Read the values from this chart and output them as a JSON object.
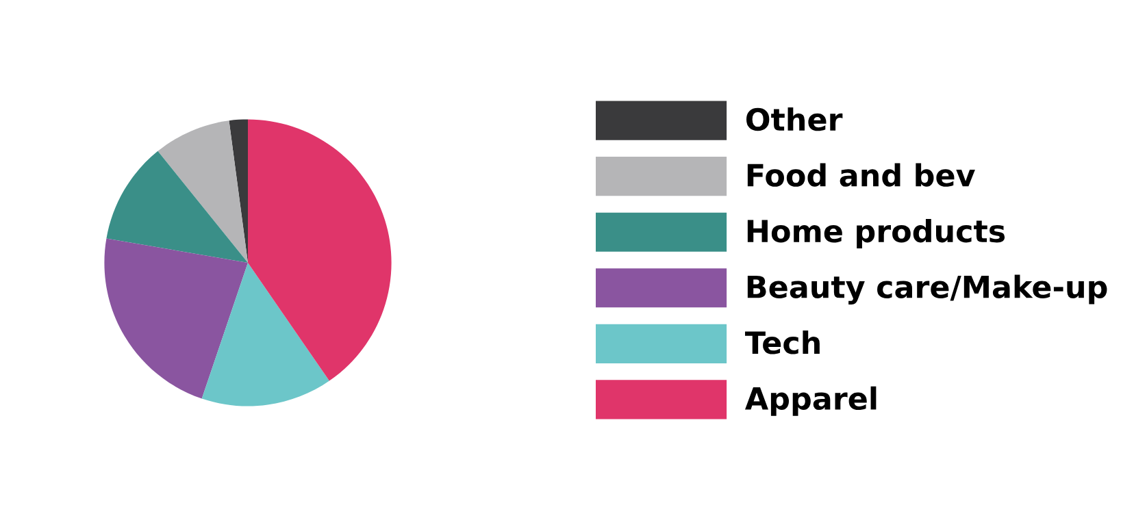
{
  "chart_data": {
    "type": "pie",
    "categories": [
      "Other",
      "Food and bev",
      "Home products",
      "Beauty care/Make-up",
      "Tech",
      "Apparel"
    ],
    "values": [
      2.1,
      8.7,
      11.5,
      22.5,
      14.8,
      40.4
    ],
    "colors": [
      "#3a3a3c",
      "#b5b5b7",
      "#3a8f88",
      "#8a55a0",
      "#6cc6c9",
      "#e0356a"
    ],
    "legend": "right"
  }
}
